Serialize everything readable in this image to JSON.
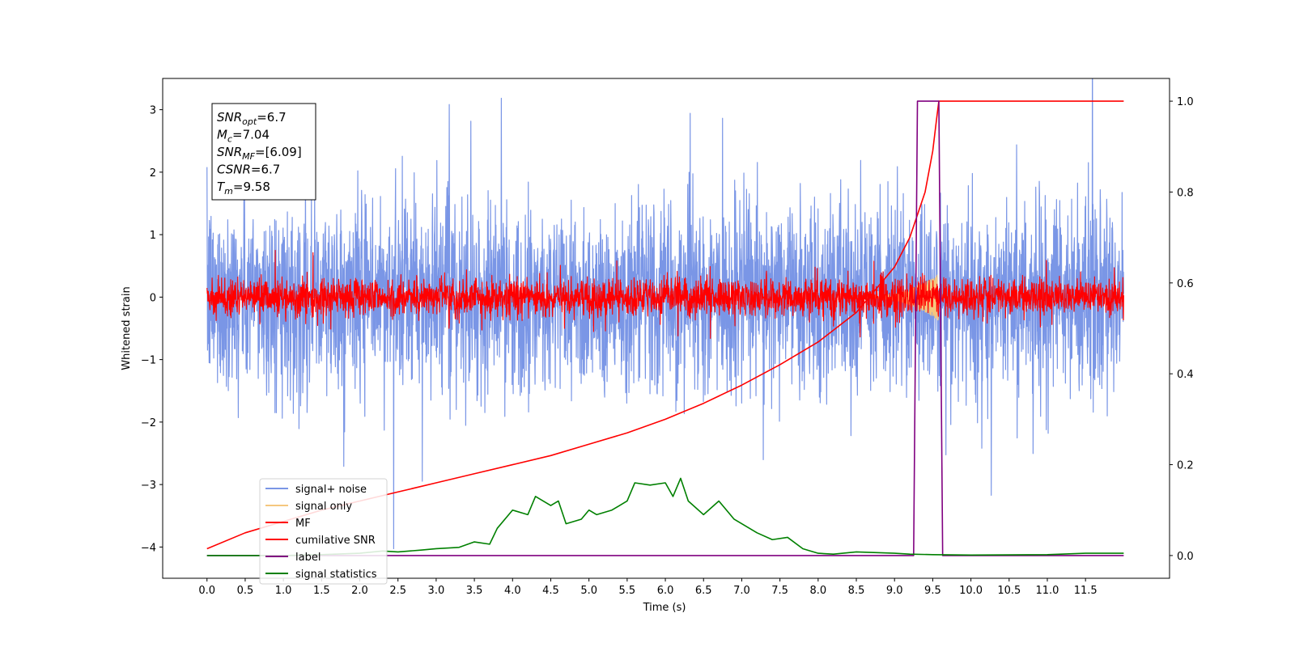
{
  "chart_data": {
    "type": "line",
    "xlabel": "Time (s)",
    "ylabel": "Whitened strain",
    "xlim": [
      -0.58,
      12.6
    ],
    "ylim_left": [
      -4.5,
      3.5
    ],
    "ylim_right": [
      -0.05,
      1.05
    ],
    "x_ticks": [
      "0.0",
      "0.5",
      "1.0",
      "1.5",
      "2.0",
      "2.5",
      "3.0",
      "3.5",
      "4.0",
      "4.5",
      "5.0",
      "5.5",
      "6.0",
      "6.5",
      "7.0",
      "7.5",
      "8.0",
      "8.5",
      "9.0",
      "9.5",
      "10.0",
      "10.5",
      "11.0",
      "11.5"
    ],
    "x_tick_values": [
      0,
      0.5,
      1,
      1.5,
      2,
      2.5,
      3,
      3.5,
      4,
      4.5,
      5,
      5.5,
      6,
      6.5,
      7,
      7.5,
      8,
      8.5,
      9,
      9.5,
      10,
      10.5,
      11,
      11.5
    ],
    "y_ticks_left": [
      "3",
      "2",
      "1",
      "0",
      "−1",
      "−2",
      "−3",
      "−4"
    ],
    "y_tick_values_left": [
      3,
      2,
      1,
      0,
      -1,
      -2,
      -3,
      -4
    ],
    "y_ticks_right": [
      "1.0",
      "0.8",
      "0.6",
      "0.4",
      "0.2",
      "0.0"
    ],
    "y_tick_values_right": [
      1.0,
      0.8,
      0.6,
      0.4,
      0.2,
      0.0
    ],
    "grid": false,
    "legend_position": "lower-left",
    "info_box": {
      "lines": [
        {
          "base": "SNR",
          "sub": "opt",
          "value": "=6.7"
        },
        {
          "base": "M",
          "sub": "c",
          "value": "=7.04"
        },
        {
          "base": "SNR",
          "sub": "MF",
          "value": "=[6.09]"
        },
        {
          "base": "CSNR",
          "sub": "",
          "value": "=6.7"
        },
        {
          "base": "T",
          "sub": "m",
          "value": "=9.58"
        }
      ]
    },
    "series": [
      {
        "name": "signal+ noise",
        "color": "#7a96e6",
        "axis": "left",
        "kind": "noise",
        "x_range": [
          0,
          12
        ],
        "sigma": 0.75
      },
      {
        "name": "signal only",
        "color": "#f5c77e",
        "axis": "left",
        "kind": "chirp",
        "x_range": [
          8.6,
          9.6
        ],
        "peak": 0.4
      },
      {
        "name": "MF",
        "color": "#ff0000",
        "axis": "left",
        "kind": "noise",
        "x_range": [
          0,
          12
        ],
        "sigma": 0.15
      },
      {
        "name": "cumilative SNR",
        "color": "#ff0000",
        "axis": "right",
        "kind": "line",
        "x": [
          0,
          0.5,
          1,
          1.5,
          2,
          2.5,
          3,
          3.5,
          4,
          4.5,
          5,
          5.5,
          6,
          6.5,
          7,
          7.5,
          8,
          8.5,
          9,
          9.2,
          9.4,
          9.5,
          9.55,
          9.58,
          12
        ],
        "y": [
          0.015,
          0.05,
          0.075,
          0.1,
          0.12,
          0.14,
          0.16,
          0.18,
          0.2,
          0.22,
          0.245,
          0.27,
          0.3,
          0.335,
          0.375,
          0.42,
          0.47,
          0.535,
          0.635,
          0.7,
          0.8,
          0.89,
          0.96,
          1.0,
          1.0
        ]
      },
      {
        "name": "label",
        "color": "#800080",
        "axis": "right",
        "kind": "line",
        "x": [
          0,
          9.25,
          9.3,
          9.58,
          9.63,
          12
        ],
        "y": [
          0,
          0,
          1,
          1,
          0,
          0
        ]
      },
      {
        "name": "signal statistics",
        "color": "#008000",
        "axis": "right",
        "kind": "line",
        "x": [
          0,
          0.5,
          1,
          1.5,
          2,
          2.3,
          2.5,
          2.8,
          3,
          3.3,
          3.5,
          3.7,
          3.8,
          4,
          4.2,
          4.3,
          4.4,
          4.5,
          4.6,
          4.7,
          4.9,
          5,
          5.1,
          5.3,
          5.5,
          5.6,
          5.8,
          6,
          6.1,
          6.2,
          6.3,
          6.5,
          6.7,
          6.9,
          7,
          7.2,
          7.4,
          7.6,
          7.8,
          8,
          8.2,
          8.5,
          9,
          9.2,
          9.5,
          10,
          11,
          11.5,
          12
        ],
        "y": [
          0.0,
          0.0,
          0.0,
          0.002,
          0.005,
          0.01,
          0.008,
          0.012,
          0.015,
          0.018,
          0.03,
          0.025,
          0.06,
          0.1,
          0.09,
          0.13,
          0.12,
          0.11,
          0.12,
          0.07,
          0.08,
          0.1,
          0.09,
          0.1,
          0.12,
          0.16,
          0.155,
          0.16,
          0.13,
          0.17,
          0.12,
          0.09,
          0.12,
          0.08,
          0.07,
          0.05,
          0.035,
          0.04,
          0.015,
          0.005,
          0.003,
          0.008,
          0.005,
          0.003,
          0.002,
          0.001,
          0.002,
          0.005,
          0.005
        ]
      }
    ]
  }
}
